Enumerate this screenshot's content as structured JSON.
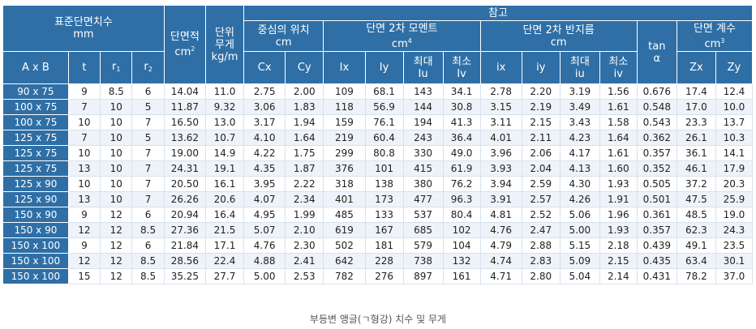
{
  "header": {
    "section": "표준단면치수",
    "section_unit": "mm",
    "area_label": "단면적",
    "area_unit": "cm",
    "area_unit_sup": "2",
    "weight_label_1": "단위",
    "weight_label_2": "무게",
    "weight_unit": "kg/m",
    "reference": "참고",
    "centroid": "중심의 위치",
    "centroid_unit": "cm",
    "moment": "단면 2차 모멘트",
    "moment_unit": "cm",
    "moment_unit_sup": "4",
    "radius": "단면 2차 반지름",
    "radius_unit": "cm",
    "tan": "tan",
    "alpha": "α",
    "modulus": "단면 계수",
    "modulus_unit": "cm",
    "modulus_unit_sup": "3",
    "max": "최대",
    "min": "최소",
    "AxB": "A x B",
    "t": "t",
    "r": "r",
    "r1_sub": "1",
    "r2_sub": "2",
    "Cx": "Cx",
    "Cy": "Cy",
    "Ix": "Ix",
    "Iy": "Iy",
    "Iu": "Iu",
    "Iv": "Iv",
    "ix": "ix",
    "iy": "iy",
    "iu": "iu",
    "iv": "iv",
    "Zx": "Zx",
    "Zy": "Zy"
  },
  "rows": [
    [
      "90 x 75",
      "9",
      "8.5",
      "6",
      "14.04",
      "11.0",
      "2.75",
      "2.00",
      "109",
      "68.1",
      "143",
      "34.1",
      "2.78",
      "2.20",
      "3.19",
      "1.56",
      "0.676",
      "17.4",
      "12.4"
    ],
    [
      "100 x 75",
      "7",
      "10",
      "5",
      "11.87",
      "9.32",
      "3.06",
      "1.83",
      "118",
      "56.9",
      "144",
      "30.8",
      "3.15",
      "2.19",
      "3.49",
      "1.61",
      "0.548",
      "17.0",
      "10.0"
    ],
    [
      "100 x 75",
      "10",
      "10",
      "7",
      "16.50",
      "13.0",
      "3.17",
      "1.94",
      "159",
      "76.1",
      "194",
      "41.3",
      "3.11",
      "2.15",
      "3.43",
      "1.58",
      "0.543",
      "23.3",
      "13.7"
    ],
    [
      "125 x 75",
      "7",
      "10",
      "5",
      "13.62",
      "10.7",
      "4.10",
      "1.64",
      "219",
      "60.4",
      "243",
      "36.4",
      "4.01",
      "2.11",
      "4.23",
      "1.64",
      "0.362",
      "26.1",
      "10.3"
    ],
    [
      "125 x 75",
      "10",
      "10",
      "7",
      "19.00",
      "14.9",
      "4.22",
      "1.75",
      "299",
      "80.8",
      "330",
      "49.0",
      "3.96",
      "2.06",
      "4.17",
      "1.61",
      "0.357",
      "36.1",
      "14.1"
    ],
    [
      "125 x 75",
      "13",
      "10",
      "7",
      "24.31",
      "19.1",
      "4.35",
      "1.87",
      "376",
      "101",
      "415",
      "61.9",
      "3.93",
      "2.04",
      "4.13",
      "1.60",
      "0.352",
      "46.1",
      "17.9"
    ],
    [
      "125 x 90",
      "10",
      "10",
      "7",
      "20.50",
      "16.1",
      "3.95",
      "2.22",
      "318",
      "138",
      "380",
      "76.2",
      "3.94",
      "2.59",
      "4.30",
      "1.93",
      "0.505",
      "37.2",
      "20.3"
    ],
    [
      "125 x 90",
      "13",
      "10",
      "7",
      "26.26",
      "20.6",
      "4.07",
      "2.34",
      "401",
      "173",
      "477",
      "96.3",
      "3.91",
      "2.57",
      "4.26",
      "1.91",
      "0.501",
      "47.5",
      "25.9"
    ],
    [
      "150 x 90",
      "9",
      "12",
      "6",
      "20.94",
      "16.4",
      "4.95",
      "1.99",
      "485",
      "133",
      "537",
      "80.4",
      "4.81",
      "2.52",
      "5.06",
      "1.96",
      "0.361",
      "48.5",
      "19.0"
    ],
    [
      "150 x 90",
      "12",
      "12",
      "8.5",
      "27.36",
      "21.5",
      "5.07",
      "2.10",
      "619",
      "167",
      "685",
      "102",
      "4.76",
      "2.47",
      "5.00",
      "1.93",
      "0.357",
      "62.3",
      "24.3"
    ],
    [
      "150 x 100",
      "9",
      "12",
      "6",
      "21.84",
      "17.1",
      "4.76",
      "2.30",
      "502",
      "181",
      "579",
      "104",
      "4.79",
      "2.88",
      "5.15",
      "2.18",
      "0.439",
      "49.1",
      "23.5"
    ],
    [
      "150 x 100",
      "12",
      "12",
      "8.5",
      "28.56",
      "22.4",
      "4.88",
      "2.41",
      "642",
      "228",
      "738",
      "132",
      "4.74",
      "2.83",
      "5.09",
      "2.15",
      "0.435",
      "63.4",
      "30.1"
    ],
    [
      "150 x 100",
      "15",
      "12",
      "8.5",
      "35.25",
      "27.7",
      "5.00",
      "2.53",
      "782",
      "276",
      "897",
      "161",
      "4.71",
      "2.80",
      "5.04",
      "2.14",
      "0.431",
      "78.2",
      "37.0"
    ]
  ],
  "caption": "부등변 앵글(ㄱ형강) 치수 및 무게"
}
